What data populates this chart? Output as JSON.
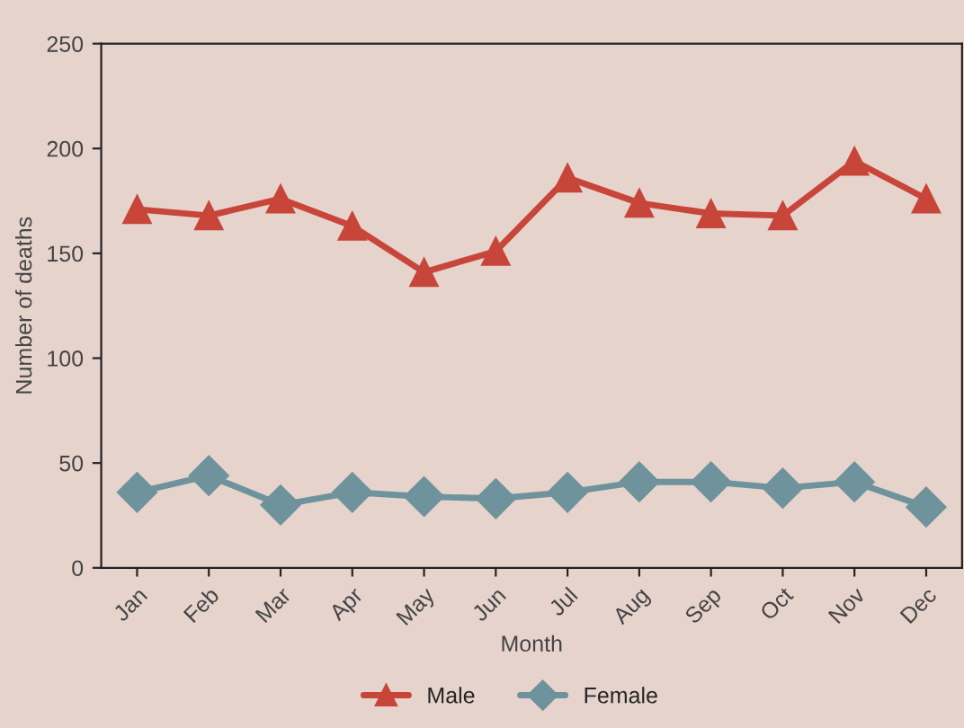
{
  "chart_data": {
    "type": "line",
    "xlabel": "Month",
    "ylabel": "Number of deaths",
    "categories": [
      "Jan",
      "Feb",
      "Mar",
      "Apr",
      "May",
      "Jun",
      "Jul",
      "Aug",
      "Sep",
      "Oct",
      "Nov",
      "Dec"
    ],
    "series": [
      {
        "name": "Male",
        "color": "#c8453a",
        "marker": "triangle",
        "values": [
          171,
          168,
          176,
          163,
          141,
          151,
          186,
          174,
          169,
          168,
          194,
          176
        ]
      },
      {
        "name": "Female",
        "color": "#6f939c",
        "marker": "diamond",
        "values": [
          36,
          44,
          30,
          36,
          34,
          33,
          36,
          41,
          41,
          38,
          41,
          29
        ]
      }
    ],
    "ylim": [
      0,
      250
    ],
    "yticks": [
      0,
      50,
      100,
      150,
      200,
      250
    ],
    "grid": false,
    "legend": "bottom",
    "line_style": "solid"
  }
}
